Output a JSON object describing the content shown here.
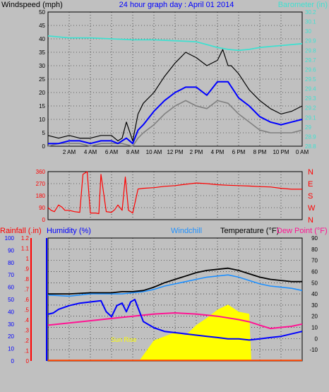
{
  "chart_data": [
    {
      "type": "line",
      "panel": "wind",
      "title": "24 hour graph day : April 01 2014",
      "left_label": "Windspeed (mph)",
      "right_label": "Barometer (in)",
      "x_ticks": [
        "2 AM",
        "4 AM",
        "6 AM",
        "8 AM",
        "10 AM",
        "12 PM",
        "2 PM",
        "4 PM",
        "6 PM",
        "8 PM",
        "10 PM",
        "0 AM"
      ],
      "x_range_hours": [
        0,
        24
      ],
      "y_left_ticks": [
        "0",
        "5",
        "10",
        "15",
        "20",
        "25",
        "30",
        "35",
        "40",
        "45",
        "50"
      ],
      "ylim_left": [
        0,
        50
      ],
      "y_right_ticks": [
        "28.8",
        "28.9",
        "29",
        "29.1",
        "29.2",
        "29.3",
        "29.4",
        "29.5",
        "29.6",
        "29.7",
        "29.8",
        "29.9",
        "30",
        "30.1",
        "30.2"
      ],
      "ylim_right": [
        28.8,
        30.2
      ],
      "grid": true,
      "series": [
        {
          "key": "gust",
          "color": "#000000",
          "x": [
            0,
            1,
            2,
            3,
            4,
            5,
            6,
            6.6,
            7,
            7.4,
            8,
            8.5,
            9,
            10,
            11,
            12,
            13,
            14,
            15,
            16,
            16.5,
            17,
            17.3,
            18,
            19,
            20,
            21,
            22,
            23,
            24
          ],
          "y": [
            4,
            3,
            4,
            3,
            3,
            4,
            4,
            2,
            3,
            9,
            2,
            12,
            16,
            20,
            26,
            31,
            35,
            33,
            30,
            32,
            36,
            30,
            30,
            27,
            21,
            17,
            14,
            12,
            13,
            15
          ]
        },
        {
          "key": "wind_average",
          "color": "#0000ff",
          "x": [
            0,
            1,
            2,
            3,
            4,
            5,
            6,
            6.6,
            7,
            7.4,
            8,
            8.5,
            9,
            10,
            11,
            12,
            13,
            14,
            15,
            16,
            17,
            18,
            19,
            20,
            21,
            22,
            23,
            24
          ],
          "y": [
            1,
            1,
            2,
            2,
            1,
            2,
            2,
            1,
            2,
            3,
            1,
            6,
            8,
            13,
            17,
            20,
            22,
            22,
            19,
            24,
            24,
            18,
            15,
            11,
            9,
            8,
            9,
            10
          ]
        },
        {
          "key": "wind_speed",
          "color": "#808080",
          "x": [
            0,
            1,
            2,
            3,
            4,
            5,
            6,
            7,
            8,
            8.5,
            9,
            10,
            11,
            12,
            13,
            14,
            15,
            16,
            17,
            18,
            19,
            20,
            21,
            22,
            23,
            24
          ],
          "y": [
            0,
            1,
            1,
            1,
            0,
            1,
            1,
            1,
            0,
            3,
            5,
            8,
            12,
            15,
            17,
            15,
            14,
            17,
            16,
            12,
            9,
            6,
            5,
            5,
            5,
            6
          ]
        },
        {
          "key": "barometer",
          "color": "#40e0d0",
          "x": [
            0,
            2,
            4,
            6,
            8,
            10,
            12,
            14,
            15,
            16,
            17,
            18,
            19,
            20,
            22,
            24
          ],
          "y": [
            29.95,
            29.93,
            29.93,
            29.92,
            29.91,
            29.91,
            29.9,
            29.89,
            29.86,
            29.83,
            29.81,
            29.8,
            29.81,
            29.83,
            29.85,
            29.87
          ]
        }
      ]
    },
    {
      "type": "scatter",
      "panel": "wind_direction",
      "y_left_ticks": [
        "0",
        "90",
        "180",
        "270",
        "360"
      ],
      "ylim": [
        0,
        360
      ],
      "y_right_ticks": [
        "N",
        "W",
        "S",
        "E",
        "N"
      ],
      "grid": true,
      "series": [
        {
          "key": "direction",
          "color": "#ff0000",
          "x": [
            0,
            0.3,
            0.6,
            1,
            1.3,
            1.6,
            2,
            2.5,
            3,
            3.3,
            3.5,
            3.7,
            4,
            4.5,
            4.8,
            5,
            5.5,
            6,
            6.3,
            6.6,
            7,
            7.3,
            7.6,
            8,
            8.5,
            9,
            10,
            11,
            12,
            13,
            14,
            15,
            16,
            17,
            18,
            19,
            20,
            21,
            22,
            23,
            24
          ],
          "y": [
            90,
            70,
            60,
            110,
            95,
            70,
            70,
            60,
            55,
            340,
            350,
            360,
            50,
            50,
            45,
            340,
            60,
            55,
            75,
            110,
            70,
            320,
            70,
            50,
            230,
            235,
            240,
            250,
            255,
            265,
            275,
            270,
            262,
            258,
            255,
            252,
            248,
            245,
            235,
            228,
            228
          ]
        }
      ]
    },
    {
      "type": "line",
      "panel": "temperature",
      "labels": {
        "rainfall": "Rainfall (.in)",
        "humidity": "Humidity (%)",
        "windchill": "Windchill",
        "temperature": "Temperature (°F)",
        "dewpoint": "Dew Point (°F)"
      },
      "annotation": "Sun Rise",
      "y_rainfall_ticks": [
        "0",
        ".1",
        ".2",
        ".3",
        ".4",
        ".5",
        ".6",
        ".7",
        ".8",
        ".9",
        "1",
        "1.1",
        "1.2"
      ],
      "ylim_rainfall": [
        0,
        1.2
      ],
      "y_humidity_ticks": [
        "0",
        "10",
        "20",
        "30",
        "40",
        "50",
        "60",
        "70",
        "80",
        "90",
        "100"
      ],
      "ylim_humidity": [
        0,
        100
      ],
      "y_temp_ticks": [
        "-10",
        "0",
        "10",
        "20",
        "30",
        "40",
        "50",
        "60",
        "70",
        "80",
        "90"
      ],
      "ylim_temp": [
        -20,
        90
      ],
      "grid": true,
      "series": [
        {
          "key": "temperature",
          "color": "#000000",
          "axis": "temp",
          "x": [
            0,
            2,
            4,
            6,
            7,
            8,
            9,
            10,
            11,
            12,
            13,
            14,
            15,
            16,
            17,
            18,
            19,
            20,
            21,
            22,
            23,
            24
          ],
          "y": [
            40,
            40,
            41,
            41,
            42,
            42,
            43,
            46,
            50,
            53,
            56,
            59,
            61,
            62,
            63,
            61,
            58,
            55,
            53,
            52,
            51,
            51
          ]
        },
        {
          "key": "windchill",
          "color": "#1e90ff",
          "axis": "temp",
          "x": [
            0,
            2,
            4,
            6,
            7,
            8,
            9,
            10,
            11,
            12,
            13,
            14,
            15,
            16,
            17,
            18,
            19,
            20,
            21,
            22,
            23,
            24
          ],
          "y": [
            39,
            38,
            40,
            40,
            40,
            41,
            42,
            44,
            47,
            49,
            51,
            53,
            55,
            56,
            57,
            55,
            52,
            49,
            47,
            46,
            45,
            43
          ]
        },
        {
          "key": "humidity",
          "color": "#0000ff",
          "axis": "humidity",
          "x": [
            0,
            0.5,
            1,
            2,
            3,
            4,
            5,
            5.5,
            6,
            6.5,
            7,
            7.4,
            7.8,
            8.2,
            9,
            10,
            11,
            12,
            13,
            14,
            15,
            16,
            17,
            18,
            19,
            20,
            21,
            22,
            23,
            24
          ],
          "y": [
            38,
            39,
            42,
            45,
            47,
            48,
            49,
            40,
            36,
            45,
            47,
            40,
            48,
            50,
            32,
            27,
            24,
            23,
            22,
            21,
            20,
            19,
            18,
            18,
            17,
            18,
            19,
            20,
            22,
            24
          ]
        },
        {
          "key": "dewpoint",
          "color": "#ff1493",
          "axis": "temp",
          "x": [
            0,
            2,
            4,
            6,
            8,
            10,
            12,
            14,
            16,
            18,
            19,
            20,
            21,
            22,
            23,
            24
          ],
          "y": [
            12,
            14,
            16,
            18,
            20,
            22,
            23,
            22,
            20,
            17,
            15,
            12,
            9,
            10,
            11,
            13
          ]
        },
        {
          "key": "rainfall",
          "color": "#ffff00",
          "axis": "rainfall",
          "x": [
            0,
            8.6,
            10,
            11,
            12,
            13,
            14,
            15,
            16,
            17,
            18,
            19,
            19.2,
            24
          ],
          "y": [
            0,
            0,
            0.2,
            0.24,
            0.28,
            0.25,
            0.35,
            0.42,
            0.5,
            0.55,
            0.48,
            0.46,
            0,
            0
          ]
        },
        {
          "key": "baseline",
          "color": "#ff4500",
          "axis": "rainfall",
          "x": [
            0,
            24
          ],
          "y": [
            0.005,
            0.005
          ]
        }
      ]
    }
  ]
}
